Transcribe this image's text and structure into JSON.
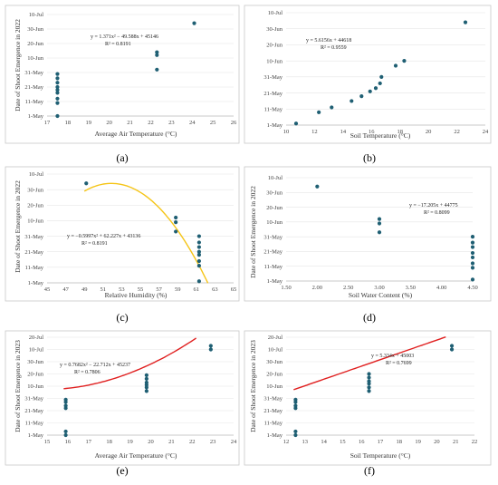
{
  "chart_data": [
    {
      "id": "a",
      "panel_label": "(a)",
      "type": "scatter",
      "xlabel": "Average Air Temperature (°C)",
      "ylabel": "Date of Shoot Emergence in 2022",
      "xlim": [
        17,
        26
      ],
      "xticks": [
        "17",
        "18",
        "19",
        "20",
        "21",
        "22",
        "23",
        "24",
        "25",
        "26"
      ],
      "yticks": [
        "1-May",
        "11-May",
        "21-May",
        "31-May",
        "10-Jun",
        "20-Jun",
        "30-Jun",
        "10-Jul"
      ],
      "ylim": [
        0,
        70
      ],
      "point_color": "#1f5f73",
      "trend_color": "#f5c518",
      "trend": {
        "kind": "poly2",
        "a": 1.371,
        "b": -49.588,
        "c": 45146,
        "offset": 45047,
        "range": [
          17.4,
          25.2
        ]
      },
      "equation": "y = 1.371x² − 49.588x + 45146",
      "r2": "R² = 0.8191",
      "points": [
        {
          "x": 17.5,
          "y": 0
        },
        {
          "x": 17.5,
          "y": 9
        },
        {
          "x": 17.5,
          "y": 12
        },
        {
          "x": 17.5,
          "y": 16
        },
        {
          "x": 17.5,
          "y": 18
        },
        {
          "x": 17.5,
          "y": 20
        },
        {
          "x": 17.5,
          "y": 23
        },
        {
          "x": 17.5,
          "y": 26
        },
        {
          "x": 17.5,
          "y": 29
        },
        {
          "x": 22.3,
          "y": 32
        },
        {
          "x": 22.3,
          "y": 42
        },
        {
          "x": 22.3,
          "y": 44
        },
        {
          "x": 24.1,
          "y": 64
        }
      ]
    },
    {
      "id": "b",
      "panel_label": "(b)",
      "type": "scatter",
      "xlabel": "Soil Temperature (°C)",
      "ylabel": "",
      "xlim": [
        10,
        24
      ],
      "xticks": [
        "10",
        "12",
        "14",
        "16",
        "18",
        "20",
        "22",
        "24"
      ],
      "yticks": [
        "1-May",
        "11-May",
        "21-May",
        "31-May",
        "10-Jun",
        "20-Jun",
        "30-Jun",
        "10-Jul"
      ],
      "ylim": [
        0,
        70
      ],
      "point_color": "#1f5f73",
      "trend_color": "#f5c518",
      "trend": {
        "kind": "linear",
        "m": 5.6156,
        "b": 44618,
        "offset": 45047,
        "range": [
          10.8,
          22.6
        ]
      },
      "equation": "y = 5.6156x + 44618",
      "r2": "R² = 0.9559",
      "points": [
        {
          "x": 10.7,
          "y": 1
        },
        {
          "x": 12.3,
          "y": 8
        },
        {
          "x": 13.2,
          "y": 11
        },
        {
          "x": 14.6,
          "y": 15
        },
        {
          "x": 15.3,
          "y": 18
        },
        {
          "x": 15.9,
          "y": 21
        },
        {
          "x": 16.3,
          "y": 23
        },
        {
          "x": 16.6,
          "y": 26
        },
        {
          "x": 16.7,
          "y": 30
        },
        {
          "x": 17.7,
          "y": 37
        },
        {
          "x": 18.3,
          "y": 40
        },
        {
          "x": 22.6,
          "y": 64
        }
      ]
    },
    {
      "id": "c",
      "panel_label": "(c)",
      "type": "scatter",
      "xlabel": "Relative Humidity (%)",
      "ylabel": "Date of Shoot Emergence in 2022",
      "xlim": [
        45,
        65
      ],
      "xticks": [
        "45",
        "47",
        "49",
        "51",
        "53",
        "55",
        "57",
        "59",
        "61",
        "63",
        "65"
      ],
      "yticks": [
        "1-May",
        "11-May",
        "21-May",
        "31-May",
        "10-Jun",
        "20-Jun",
        "30-Jun",
        "10-Jul"
      ],
      "ylim": [
        0,
        70
      ],
      "point_color": "#1f5f73",
      "trend_color": "#f5c518",
      "trend": {
        "kind": "poly2",
        "a": -0.5997,
        "b": 62.227,
        "c": 43136,
        "offset": 0,
        "range": [
          49,
          62.7
        ]
      },
      "equation": "y = −0.5997x² + 62.227x + 43136",
      "r2": "R² = 0.8191",
      "points": [
        {
          "x": 49.2,
          "y": 64
        },
        {
          "x": 58.8,
          "y": 42
        },
        {
          "x": 58.8,
          "y": 39
        },
        {
          "x": 58.8,
          "y": 33
        },
        {
          "x": 61.3,
          "y": 30
        },
        {
          "x": 61.3,
          "y": 26
        },
        {
          "x": 61.3,
          "y": 23
        },
        {
          "x": 61.3,
          "y": 20
        },
        {
          "x": 61.3,
          "y": 18
        },
        {
          "x": 61.3,
          "y": 14
        },
        {
          "x": 61.3,
          "y": 11
        },
        {
          "x": 61.3,
          "y": 1
        }
      ]
    },
    {
      "id": "d",
      "panel_label": "(d)",
      "type": "scatter",
      "xlabel": "Soil Water Content (%)",
      "ylabel": "Date of Shoot Emergence in 2022",
      "xlim": [
        1.5,
        4.5
      ],
      "xticks": [
        "1.50",
        "2.00",
        "2.50",
        "3.00",
        "3.50",
        "4.00",
        "4.50"
      ],
      "yticks": [
        "1-May",
        "11-May",
        "21-May",
        "31-May",
        "10-Jun",
        "20-Jun",
        "30-Jun",
        "10-Jul"
      ],
      "ylim": [
        0,
        70
      ],
      "point_color": "#1f5f73",
      "trend_color": "#f5c518",
      "trend": {
        "kind": "linear",
        "m": -17.205,
        "b": 44775,
        "offset": 45047,
        "range": [
          1.5,
          4.5
        ]
      },
      "equation": "y = −17.205x + 44775",
      "r2": "R² = 0.8099",
      "points": [
        {
          "x": 2.0,
          "y": 64
        },
        {
          "x": 3.0,
          "y": 42
        },
        {
          "x": 3.0,
          "y": 39
        },
        {
          "x": 3.0,
          "y": 33
        },
        {
          "x": 4.5,
          "y": 30
        },
        {
          "x": 4.5,
          "y": 26
        },
        {
          "x": 4.5,
          "y": 23
        },
        {
          "x": 4.5,
          "y": 19
        },
        {
          "x": 4.5,
          "y": 16
        },
        {
          "x": 4.5,
          "y": 12
        },
        {
          "x": 4.5,
          "y": 9
        },
        {
          "x": 4.5,
          "y": 1
        }
      ]
    },
    {
      "id": "e",
      "panel_label": "(e)",
      "type": "scatter",
      "xlabel": "Average Air Temperature (°C)",
      "ylabel": "Date of Shoot Emergence in 2023",
      "xlim": [
        15,
        24
      ],
      "xticks": [
        "15",
        "16",
        "17",
        "18",
        "19",
        "20",
        "21",
        "22",
        "23",
        "24"
      ],
      "yticks": [
        "1-May",
        "11-May",
        "21-May",
        "31-May",
        "10-Jun",
        "20-Jun",
        "30-Jun",
        "10-Jul",
        "20-Jul"
      ],
      "ylim": [
        0,
        80
      ],
      "point_color": "#1f5f73",
      "trend_color": "#e02020",
      "trend": {
        "kind": "poly2",
        "a": 0.7682,
        "b": -22.712,
        "c": 45237,
        "offset": 45032,
        "range": [
          15.8,
          22.9
        ]
      },
      "equation": "y = 0.7682x² − 22.712x + 45237",
      "r2": "R² = 0.7806",
      "points": [
        {
          "x": 15.9,
          "y": 0
        },
        {
          "x": 15.9,
          "y": 3
        },
        {
          "x": 15.9,
          "y": 22
        },
        {
          "x": 15.9,
          "y": 24
        },
        {
          "x": 15.9,
          "y": 27
        },
        {
          "x": 15.9,
          "y": 29
        },
        {
          "x": 19.8,
          "y": 36
        },
        {
          "x": 19.8,
          "y": 39
        },
        {
          "x": 19.8,
          "y": 41
        },
        {
          "x": 19.8,
          "y": 43
        },
        {
          "x": 19.8,
          "y": 46
        },
        {
          "x": 19.8,
          "y": 49
        },
        {
          "x": 22.9,
          "y": 70
        },
        {
          "x": 22.9,
          "y": 73
        }
      ]
    },
    {
      "id": "f",
      "panel_label": "(f)",
      "type": "scatter",
      "xlabel": "Soil Temperature (°C)",
      "ylabel": "Date of Shoot Emergence in 2023",
      "xlim": [
        12,
        22
      ],
      "xticks": [
        "12",
        "13",
        "14",
        "15",
        "16",
        "17",
        "18",
        "19",
        "20",
        "21",
        "22"
      ],
      "yticks": [
        "1-May",
        "11-May",
        "21-May",
        "31-May",
        "10-Jun",
        "20-Jun",
        "30-Jun",
        "10-Jul",
        "20-Jul"
      ],
      "ylim": [
        0,
        80
      ],
      "point_color": "#1f5f73",
      "trend_color": "#e02020",
      "trend": {
        "kind": "linear",
        "m": 5.334,
        "b": 45003,
        "offset": 45032,
        "range": [
          12.4,
          20.9
        ]
      },
      "equation": "y = 5.334x + 45003",
      "r2": "R² = 0.7699",
      "points": [
        {
          "x": 12.5,
          "y": 0
        },
        {
          "x": 12.5,
          "y": 3
        },
        {
          "x": 12.5,
          "y": 22
        },
        {
          "x": 12.5,
          "y": 24
        },
        {
          "x": 12.5,
          "y": 27
        },
        {
          "x": 12.5,
          "y": 29
        },
        {
          "x": 16.4,
          "y": 36
        },
        {
          "x": 16.4,
          "y": 39
        },
        {
          "x": 16.4,
          "y": 42
        },
        {
          "x": 16.4,
          "y": 44
        },
        {
          "x": 16.4,
          "y": 47
        },
        {
          "x": 16.4,
          "y": 50
        },
        {
          "x": 20.8,
          "y": 70
        },
        {
          "x": 20.8,
          "y": 73
        }
      ]
    }
  ]
}
